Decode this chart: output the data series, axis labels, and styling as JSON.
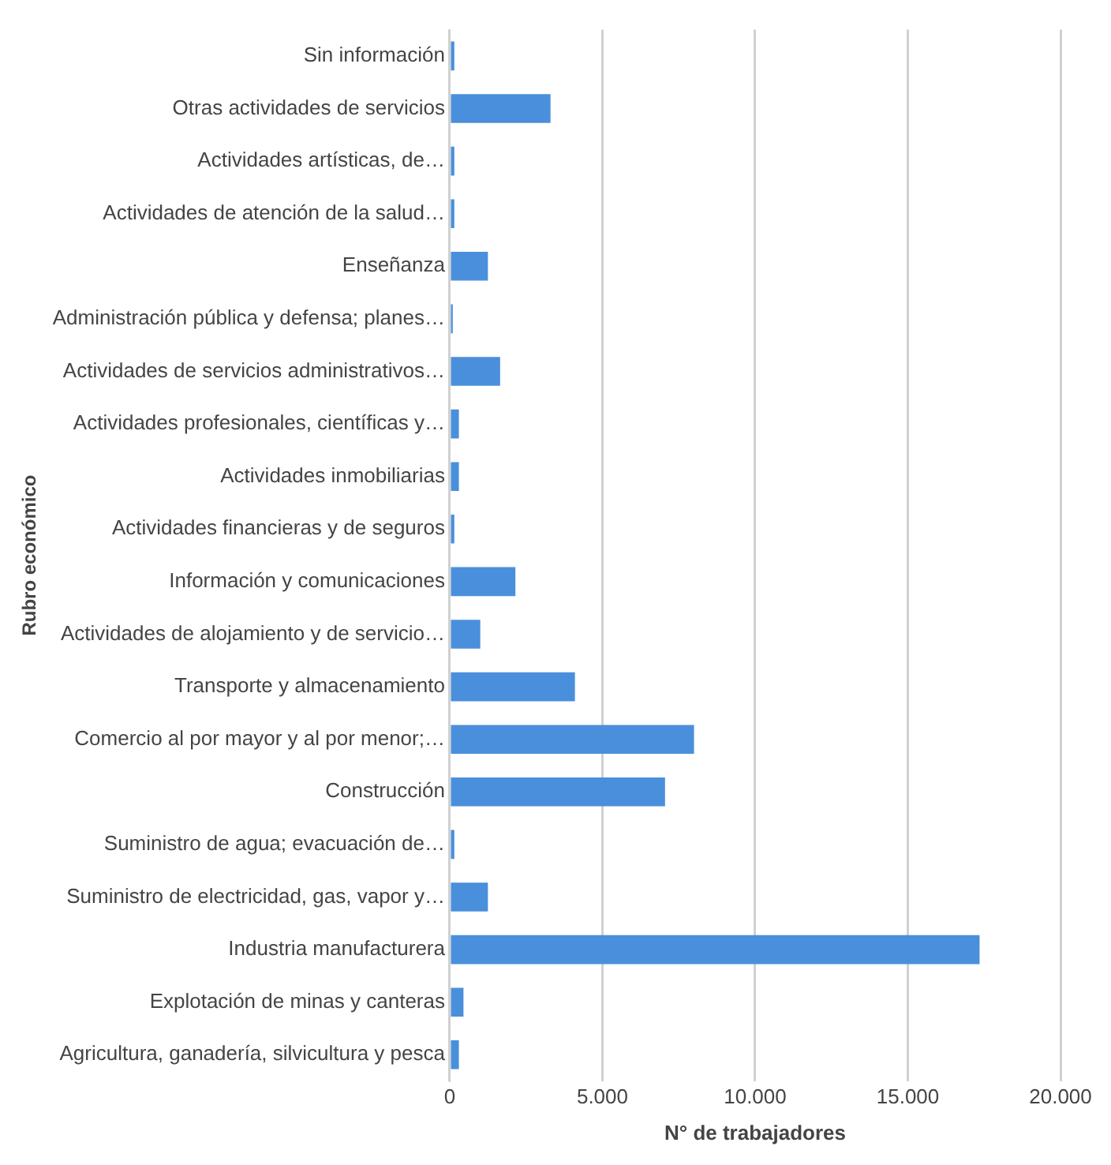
{
  "chart_data": {
    "type": "bar",
    "orientation": "horizontal",
    "xlabel": "N° de trabajadores",
    "ylabel": "Rubro económico",
    "categories": [
      "Sin información",
      "Otras actividades de servicios",
      "Actividades artísticas, de…",
      "Actividades de atención de la salud…",
      "Enseñanza",
      "Administración pública y defensa; planes…",
      "Actividades de servicios administrativos…",
      "Actividades profesionales, científicas y…",
      "Actividades inmobiliarias",
      "Actividades financieras y de seguros",
      "Información y comunicaciones",
      "Actividades de alojamiento y de servicio…",
      "Transporte y almacenamiento",
      "Comercio al por mayor y al por menor;…",
      "Construcción",
      "Suministro de agua; evacuación de…",
      "Suministro de electricidad, gas, vapor y…",
      "Industria manufacturera",
      "Explotación de minas y canteras",
      "Agricultura, ganadería, silvicultura y pesca"
    ],
    "values": [
      150,
      3300,
      150,
      150,
      1250,
      100,
      1650,
      300,
      300,
      150,
      2150,
      1000,
      4100,
      8000,
      7050,
      150,
      1250,
      17350,
      450,
      300
    ],
    "color": "#4a8fdb",
    "xlim": [
      0,
      20000
    ],
    "xticks": [
      0,
      {
        "value": 5000,
        "label": "5.000"
      },
      {
        "value": 10000,
        "label": "10.000"
      },
      {
        "value": 15000,
        "label": "15.000"
      },
      {
        "value": 20000,
        "label": "20.000"
      }
    ],
    "grid": "x"
  }
}
